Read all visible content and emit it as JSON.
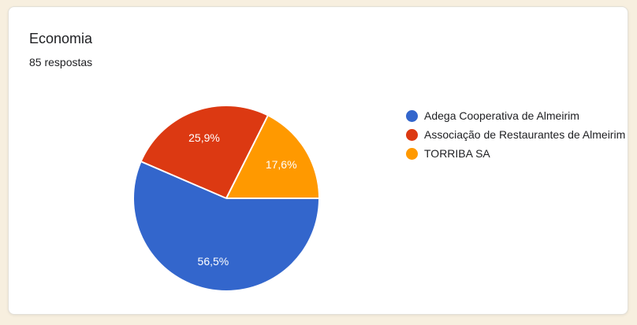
{
  "page": {
    "background_color": "#f7efdf"
  },
  "card": {
    "title": "Economia",
    "subtitle": "85 respostas"
  },
  "chart_data": {
    "type": "pie",
    "title": "Economia",
    "subtitle": "85 respostas",
    "total_responses": 85,
    "legend_position": "right",
    "start_angle": "east-clockwise",
    "slices": [
      {
        "label": "Adega Cooperativa de Almeirim",
        "value_pct": 56.5,
        "display": "56,5%",
        "color": "#3366CC"
      },
      {
        "label": "Associação de Restaurantes de Almeirim",
        "value_pct": 25.9,
        "display": "25,9%",
        "color": "#DC3912"
      },
      {
        "label": "TORRIBA SA",
        "value_pct": 17.6,
        "display": "17,6%",
        "color": "#FF9900"
      }
    ]
  }
}
